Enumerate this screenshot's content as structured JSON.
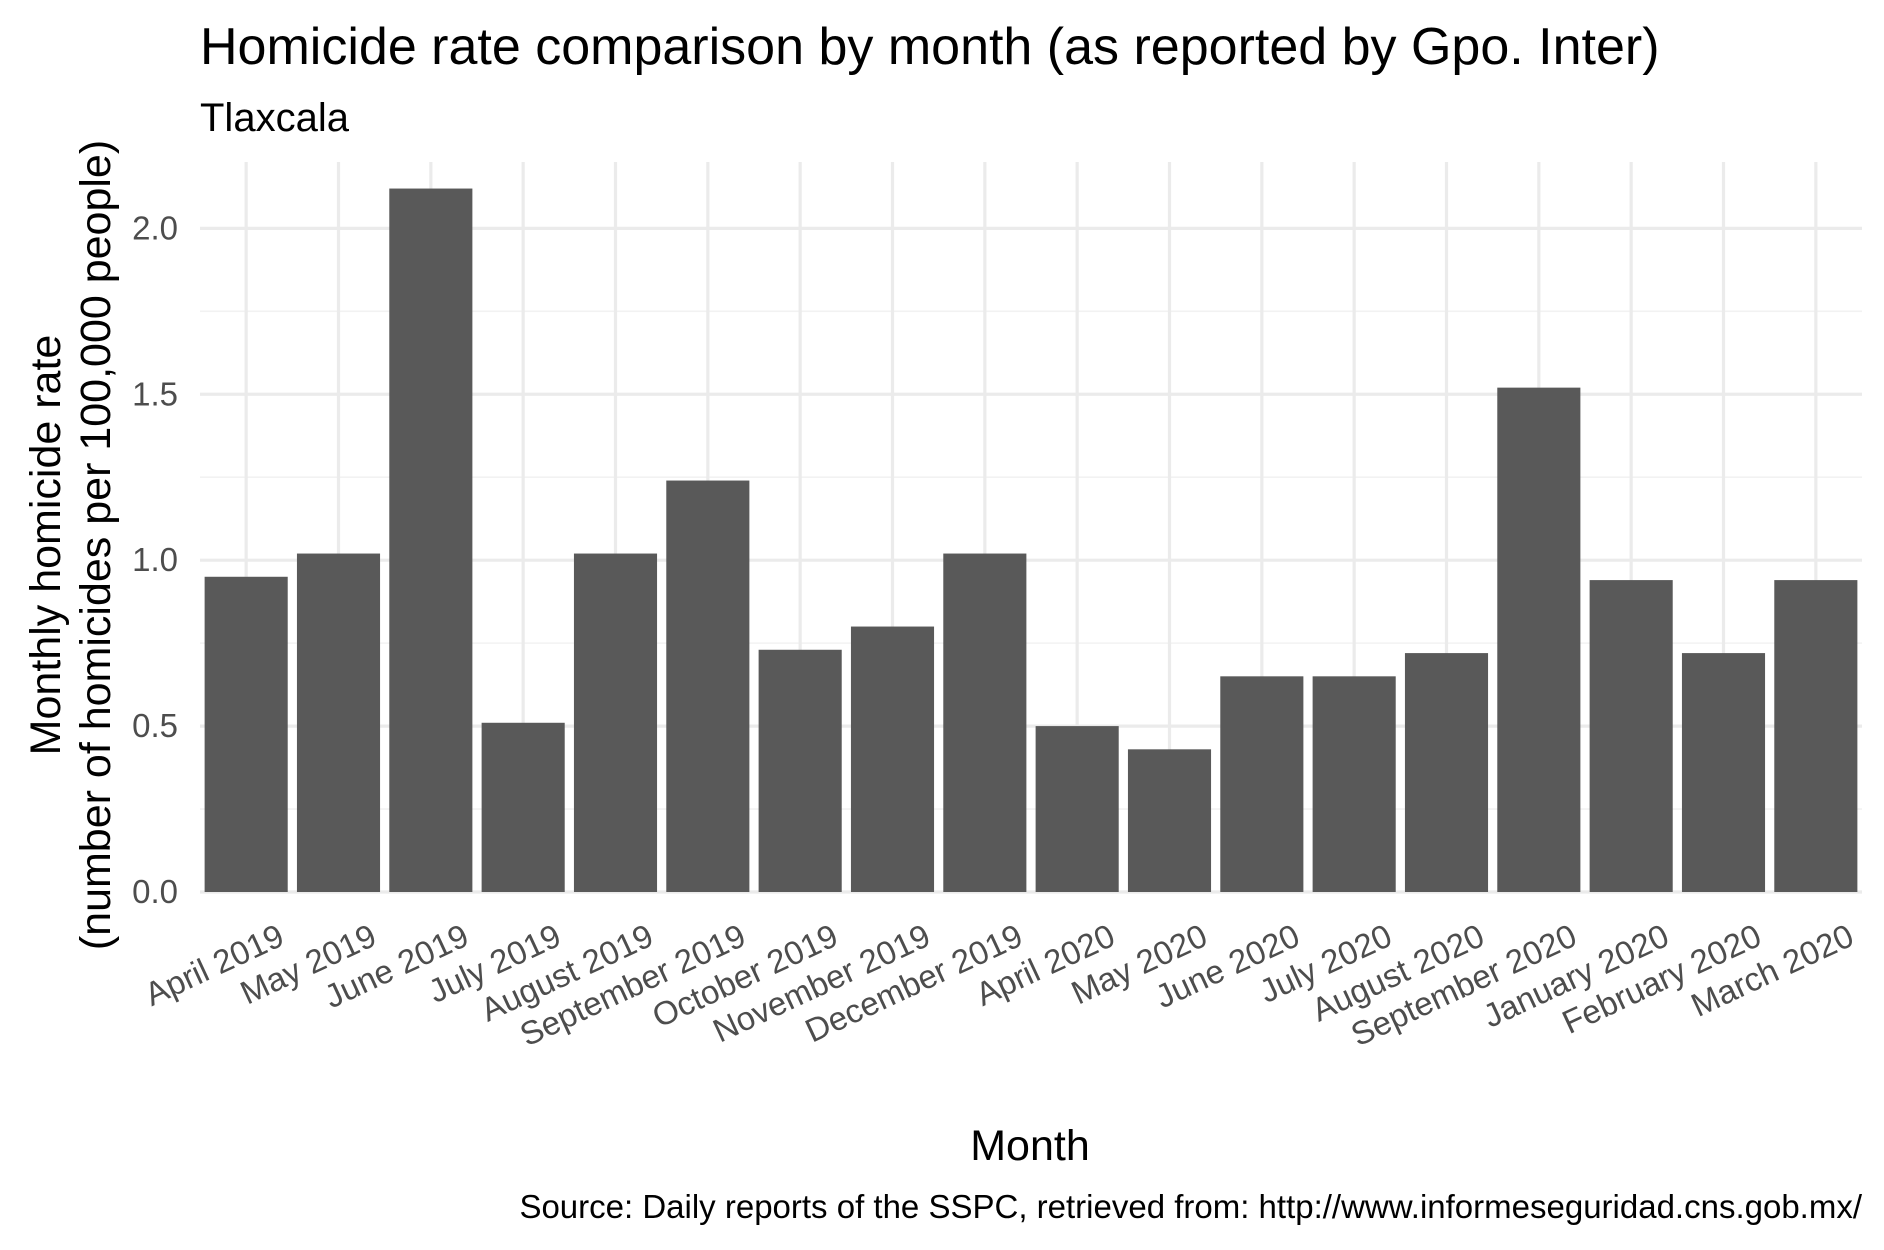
{
  "chart_data": {
    "type": "bar",
    "title": "Homicide rate comparison by month (as reported by Gpo. Inter)",
    "subtitle": "Tlaxcala",
    "xlabel": "Month",
    "ylabel_line1": "Monthly homicide rate",
    "ylabel_line2": "(number of homicides per 100,000 people)",
    "caption": "Source: Daily reports of the SSPC, retrieved from: http://www.informeseguridad.cns.gob.mx/",
    "categories": [
      "April 2019",
      "May 2019",
      "June 2019",
      "July 2019",
      "August 2019",
      "September 2019",
      "October 2019",
      "November 2019",
      "December 2019",
      "April 2020",
      "May 2020",
      "June 2020",
      "July 2020",
      "August 2020",
      "September 2020",
      "January 2020",
      "February 2020",
      "March 2020"
    ],
    "values": [
      0.95,
      1.02,
      2.12,
      0.51,
      1.02,
      1.24,
      0.73,
      0.8,
      1.02,
      0.5,
      0.43,
      0.65,
      0.65,
      0.72,
      1.52,
      0.94,
      0.72,
      0.94
    ],
    "ylim": [
      0,
      2.2
    ],
    "yticks": [
      0.0,
      0.5,
      1.0,
      1.5,
      2.0
    ],
    "ytick_labels": [
      "0.0",
      "0.5",
      "1.0",
      "1.5",
      "2.0"
    ],
    "grid": true,
    "legend": "none",
    "bar_color": "#595959",
    "grid_color": "#ebebeb"
  }
}
